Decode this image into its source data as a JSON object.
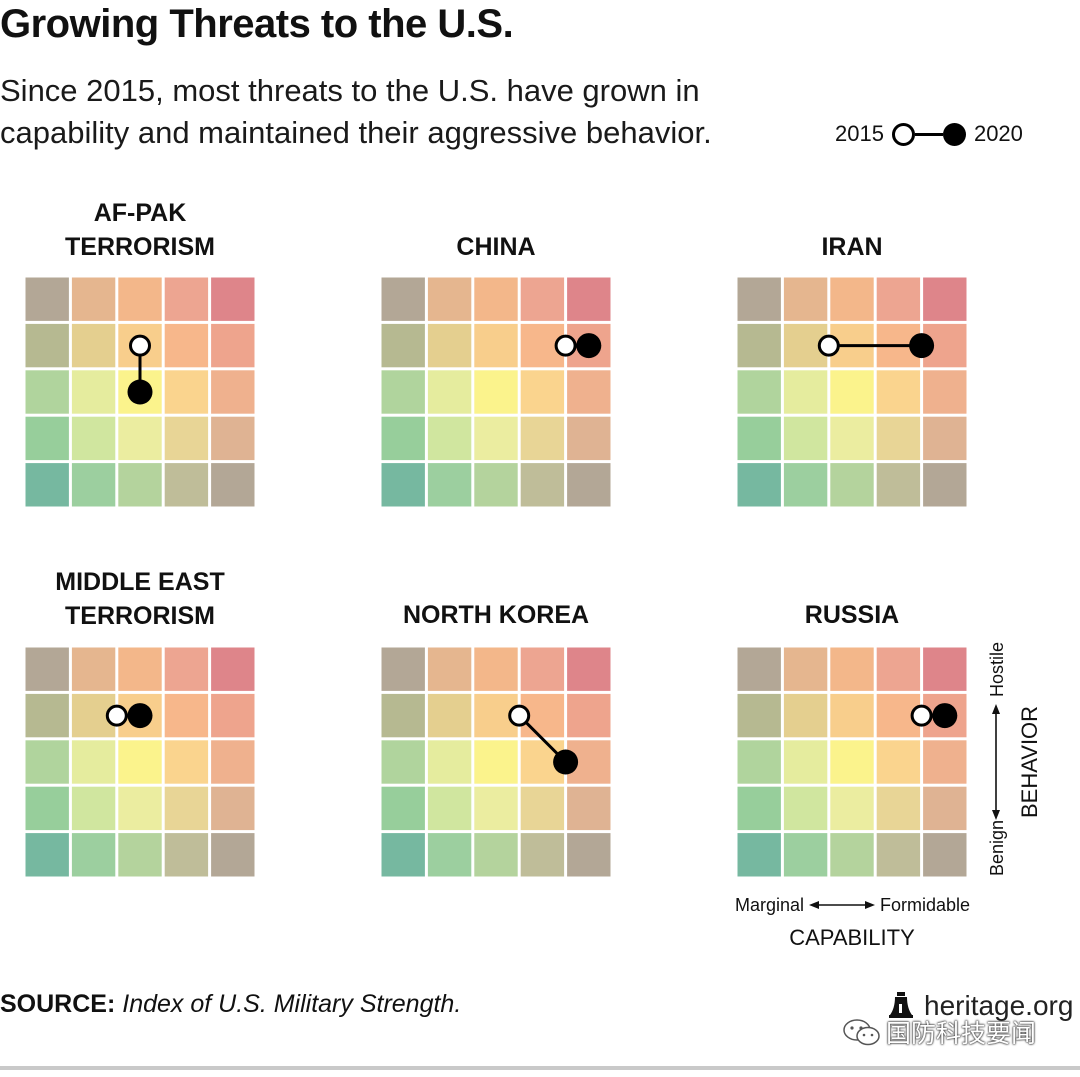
{
  "header": {
    "title": "Growing Threats to the U.S.",
    "subtitle": "Since 2015, most threats to the U.S. have grown in capability and maintained their aggressive behavior."
  },
  "legend": {
    "start_label": "2015",
    "end_label": "2020"
  },
  "axes": {
    "behavior_label": "BEHAVIOR",
    "behavior_high": "Hostile",
    "behavior_low": "Benign",
    "capability_label": "CAPABILITY",
    "capability_low": "Marginal",
    "capability_high": "Formidable"
  },
  "footer": {
    "source_label": "SOURCE:",
    "source_text": "Index of U.S. Military Strength.",
    "brand": "heritage.org",
    "wechat_text": "国防科技要闻"
  },
  "colors": {
    "grid": [
      [
        "#b3a796",
        "#e5b68f",
        "#f3b78a",
        "#eda591",
        "#de858a"
      ],
      [
        "#b6b991",
        "#e4cf8f",
        "#f8ce8c",
        "#f7b78b",
        "#eea48d"
      ],
      [
        "#b0d49d",
        "#e5ec9e",
        "#fbf38c",
        "#fad48e",
        "#efb18e"
      ],
      [
        "#97ce9b",
        "#d0e69f",
        "#ebeda0",
        "#e8d596",
        "#dfb393"
      ],
      [
        "#76b8a0",
        "#9ccf9f",
        "#b4d39d",
        "#bfbd99",
        "#b3a796"
      ]
    ],
    "marker": "#000000"
  },
  "chart_data": [
    {
      "type": "scatter",
      "title_lines": [
        "AF-PAK",
        "TERRORISM"
      ],
      "xlabel": "CAPABILITY",
      "ylabel": "BEHAVIOR",
      "x_range": [
        1,
        5
      ],
      "y_range": [
        1,
        5
      ],
      "x_categories": [
        "Marginal",
        "",
        "",
        "",
        "Formidable"
      ],
      "y_categories": [
        "Benign",
        "",
        "",
        "",
        "Hostile"
      ],
      "series": [
        {
          "from": {
            "x": 3,
            "y": 4
          },
          "to": {
            "x": 3,
            "y": 3
          }
        }
      ]
    },
    {
      "type": "scatter",
      "title_lines": [
        "CHINA"
      ],
      "xlabel": "CAPABILITY",
      "ylabel": "BEHAVIOR",
      "x_range": [
        1,
        5
      ],
      "y_range": [
        1,
        5
      ],
      "x_categories": [
        "Marginal",
        "",
        "",
        "",
        "Formidable"
      ],
      "y_categories": [
        "Benign",
        "",
        "",
        "",
        "Hostile"
      ],
      "series": [
        {
          "from": {
            "x": 4.5,
            "y": 4
          },
          "to": {
            "x": 5,
            "y": 4
          }
        }
      ]
    },
    {
      "type": "scatter",
      "title_lines": [
        "IRAN"
      ],
      "xlabel": "CAPABILITY",
      "ylabel": "BEHAVIOR",
      "x_range": [
        1,
        5
      ],
      "y_range": [
        1,
        5
      ],
      "x_categories": [
        "Marginal",
        "",
        "",
        "",
        "Formidable"
      ],
      "y_categories": [
        "Benign",
        "",
        "",
        "",
        "Hostile"
      ],
      "series": [
        {
          "from": {
            "x": 2.5,
            "y": 4
          },
          "to": {
            "x": 4.5,
            "y": 4
          }
        }
      ]
    },
    {
      "type": "scatter",
      "title_lines": [
        "MIDDLE EAST",
        "TERRORISM"
      ],
      "xlabel": "CAPABILITY",
      "ylabel": "BEHAVIOR",
      "x_range": [
        1,
        5
      ],
      "y_range": [
        1,
        5
      ],
      "x_categories": [
        "Marginal",
        "",
        "",
        "",
        "Formidable"
      ],
      "y_categories": [
        "Benign",
        "",
        "",
        "",
        "Hostile"
      ],
      "series": [
        {
          "from": {
            "x": 2.5,
            "y": 4
          },
          "to": {
            "x": 3,
            "y": 4
          }
        }
      ]
    },
    {
      "type": "scatter",
      "title_lines": [
        "NORTH KOREA"
      ],
      "xlabel": "CAPABILITY",
      "ylabel": "BEHAVIOR",
      "x_range": [
        1,
        5
      ],
      "y_range": [
        1,
        5
      ],
      "x_categories": [
        "Marginal",
        "",
        "",
        "",
        "Formidable"
      ],
      "y_categories": [
        "Benign",
        "",
        "",
        "",
        "Hostile"
      ],
      "series": [
        {
          "from": {
            "x": 3.5,
            "y": 4
          },
          "to": {
            "x": 4.5,
            "y": 3
          }
        }
      ]
    },
    {
      "type": "scatter",
      "title_lines": [
        "RUSSIA"
      ],
      "xlabel": "CAPABILITY",
      "ylabel": "BEHAVIOR",
      "x_range": [
        1,
        5
      ],
      "y_range": [
        1,
        5
      ],
      "x_categories": [
        "Marginal",
        "",
        "",
        "",
        "Formidable"
      ],
      "y_categories": [
        "Benign",
        "",
        "",
        "",
        "Hostile"
      ],
      "series": [
        {
          "from": {
            "x": 4.5,
            "y": 4
          },
          "to": {
            "x": 5,
            "y": 4
          }
        }
      ]
    }
  ]
}
